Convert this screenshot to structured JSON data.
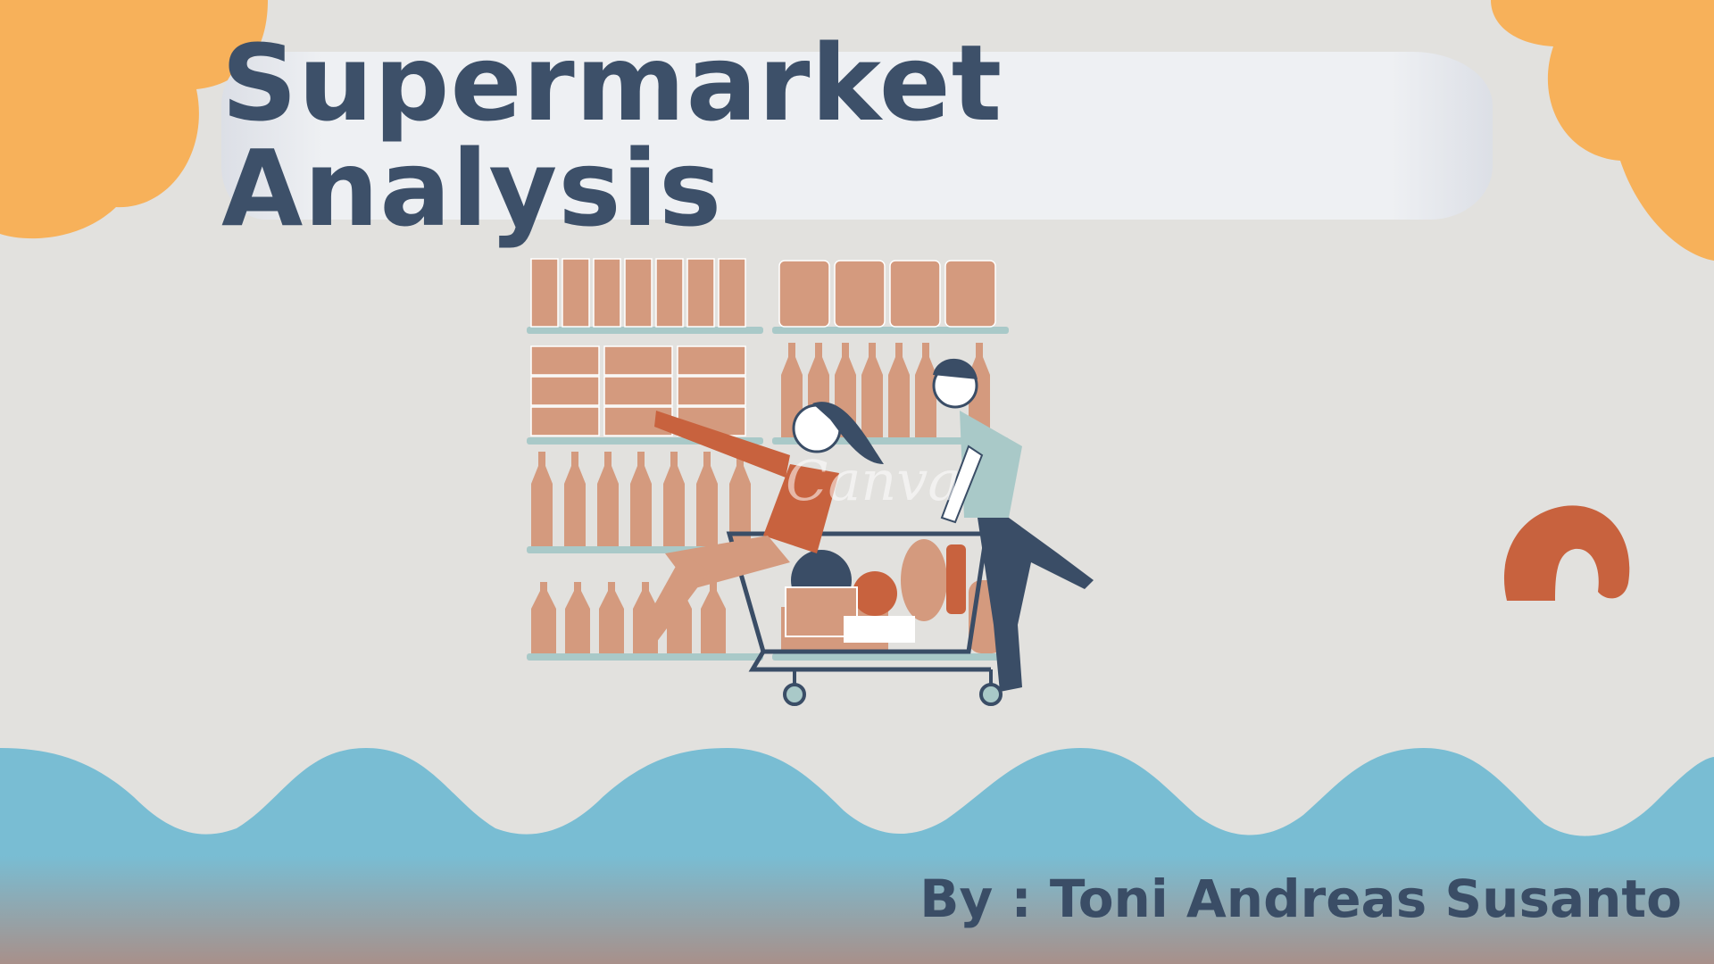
{
  "slide": {
    "title": "Supermarket Analysis",
    "author_line": "By : Toni Andreas Susanto",
    "watermark": "Canva"
  },
  "illustration": {
    "description_icon": "shopping-cart-illustration-icon"
  },
  "colors": {
    "background": "#e2e1de",
    "title_text": "#3d5069",
    "banner": "#eef0f3",
    "cloud_orange": "#f7b15a",
    "wave_blue": "#79bdd3",
    "wave_bottom": "#a8908a",
    "accent_rust": "#c8623e",
    "shelf_goods": "#d49a7e",
    "shelf_board": "#a9c9c8",
    "navy": "#3a4d66"
  }
}
